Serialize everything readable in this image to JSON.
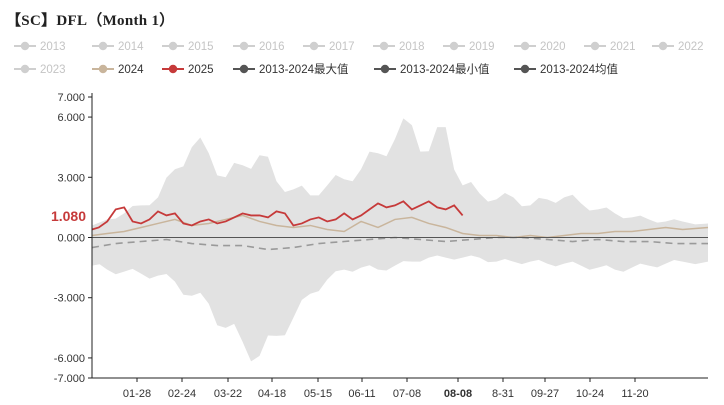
{
  "title": "【SC】DFL（Month 1）",
  "colors": {
    "inactive": "#cfcfcf",
    "inactive_text": "#c4c4c4",
    "series_2024": "#c9b59c",
    "series_2025": "#c63a3a",
    "band": "#e2e2e2",
    "min_line": "#555555",
    "mean_line": "#9a9a9a",
    "axis": "#222222",
    "active_text": "#333333",
    "highlight_text": "#c63a3a"
  },
  "legend": [
    {
      "label": "2013",
      "active": false
    },
    {
      "label": "2014",
      "active": false
    },
    {
      "label": "2015",
      "active": false
    },
    {
      "label": "2016",
      "active": false
    },
    {
      "label": "2017",
      "active": false
    },
    {
      "label": "2018",
      "active": false
    },
    {
      "label": "2019",
      "active": false
    },
    {
      "label": "2020",
      "active": false
    },
    {
      "label": "2021",
      "active": false
    },
    {
      "label": "2022",
      "active": false
    },
    {
      "label": "2023",
      "active": false
    },
    {
      "label": "2024",
      "active": true,
      "color": "#c9b59c"
    },
    {
      "label": "2025",
      "active": true,
      "color": "#c63a3a"
    },
    {
      "label": "2013-2024最大值",
      "active": true,
      "color": "#555555"
    },
    {
      "label": "2013-2024最小值",
      "active": true,
      "color": "#555555"
    },
    {
      "label": "2013-2024均值",
      "active": true,
      "color": "#555555"
    }
  ],
  "chart_data": {
    "type": "line",
    "title": "【SC】DFL（Month 1）",
    "y_ticks": [
      "7.000",
      "6.000",
      "3.000",
      "0.000",
      "-3.000",
      "-6.000",
      "-7.000"
    ],
    "ylim": [
      -7,
      7
    ],
    "x_tick_labels": [
      "01-28",
      "02-24",
      "03-22",
      "04-18",
      "05-15",
      "06-11",
      "07-08",
      "08-08",
      "8-31",
      "09-27",
      "10-24",
      "11-20"
    ],
    "highlight_x_label": "08-08",
    "highlight_y_label": "1.080",
    "x_domain_days": [
      1,
      365
    ],
    "band_max": {
      "x": [
        1,
        10,
        20,
        30,
        40,
        50,
        60,
        70,
        80,
        90,
        100,
        110,
        120,
        130,
        140,
        150,
        160,
        170,
        180,
        190,
        200,
        210,
        220,
        230,
        240,
        250,
        260,
        270,
        280,
        290,
        300,
        310,
        320,
        330,
        340,
        350,
        365
      ],
      "y": [
        0.6,
        0.9,
        1.2,
        1.6,
        2.0,
        3.4,
        4.5,
        4.2,
        3.0,
        3.6,
        4.1,
        2.8,
        2.4,
        2.1,
        2.6,
        2.9,
        3.4,
        4.2,
        4.9,
        5.6,
        4.3,
        5.5,
        2.6,
        2.2,
        1.9,
        2.0,
        1.6,
        1.9,
        2.0,
        1.7,
        1.4,
        1.2,
        1.0,
        0.9,
        0.8,
        0.8,
        0.7
      ]
    },
    "band_min": {
      "x": [
        1,
        10,
        20,
        30,
        40,
        50,
        60,
        70,
        80,
        90,
        100,
        110,
        120,
        130,
        140,
        150,
        160,
        170,
        180,
        190,
        200,
        210,
        220,
        230,
        240,
        250,
        260,
        270,
        280,
        290,
        300,
        310,
        320,
        330,
        340,
        350,
        365
      ],
      "y": [
        -1.4,
        -1.6,
        -1.7,
        -1.8,
        -1.9,
        -2.2,
        -2.9,
        -3.3,
        -4.5,
        -5.2,
        -5.9,
        -4.9,
        -4.0,
        -2.8,
        -2.1,
        -1.6,
        -1.5,
        -1.6,
        -1.4,
        -1.2,
        -1.0,
        -1.0,
        -1.0,
        -1.0,
        -1.2,
        -1.2,
        -1.2,
        -1.3,
        -1.3,
        -1.4,
        -1.5,
        -1.6,
        -1.5,
        -1.4,
        -1.3,
        -1.2,
        -1.2
      ]
    },
    "series": [
      {
        "name": "2024",
        "color": "#c9b59c",
        "x": [
          1,
          10,
          20,
          30,
          40,
          50,
          60,
          70,
          80,
          90,
          100,
          110,
          120,
          130,
          140,
          150,
          160,
          170,
          180,
          190,
          200,
          210,
          220,
          230,
          240,
          250,
          260,
          270,
          280,
          290,
          300,
          310,
          320,
          330,
          340,
          350,
          365
        ],
        "y": [
          0.1,
          0.2,
          0.3,
          0.5,
          0.7,
          0.9,
          0.6,
          0.7,
          0.9,
          1.1,
          0.8,
          0.6,
          0.5,
          0.6,
          0.4,
          0.3,
          0.8,
          0.5,
          0.9,
          1.0,
          0.7,
          0.5,
          0.2,
          0.1,
          0.1,
          0.0,
          0.1,
          0.0,
          0.1,
          0.2,
          0.2,
          0.3,
          0.3,
          0.4,
          0.5,
          0.4,
          0.5
        ]
      },
      {
        "name": "2025",
        "color": "#c63a3a",
        "x": [
          1,
          5,
          10,
          15,
          20,
          25,
          30,
          35,
          40,
          45,
          50,
          55,
          60,
          65,
          70,
          75,
          80,
          85,
          90,
          95,
          100,
          105,
          110,
          115,
          120,
          125,
          130,
          135,
          140,
          145,
          150,
          155,
          160,
          165,
          170,
          175,
          180,
          185,
          190,
          195,
          200,
          205,
          210,
          215,
          220
        ],
        "y": [
          0.4,
          0.5,
          0.8,
          1.4,
          1.5,
          0.8,
          0.7,
          0.9,
          1.3,
          1.1,
          1.2,
          0.7,
          0.6,
          0.8,
          0.9,
          0.7,
          0.8,
          1.0,
          1.2,
          1.1,
          1.1,
          1.0,
          1.3,
          1.2,
          0.6,
          0.7,
          0.9,
          1.0,
          0.8,
          0.9,
          1.2,
          0.9,
          1.1,
          1.4,
          1.7,
          1.5,
          1.6,
          1.8,
          1.4,
          1.6,
          1.8,
          1.5,
          1.4,
          1.6,
          1.1
        ]
      },
      {
        "name": "2013-2024均值",
        "color": "#9a9a9a",
        "dashed": true,
        "x": [
          1,
          15,
          30,
          45,
          60,
          75,
          90,
          105,
          120,
          135,
          150,
          165,
          180,
          195,
          210,
          225,
          240,
          255,
          270,
          285,
          300,
          315,
          330,
          345,
          365
        ],
        "y": [
          -0.5,
          -0.3,
          -0.2,
          -0.1,
          -0.3,
          -0.4,
          -0.4,
          -0.6,
          -0.5,
          -0.3,
          -0.2,
          -0.1,
          0.0,
          -0.1,
          -0.2,
          -0.1,
          0.0,
          0.0,
          -0.1,
          -0.2,
          -0.1,
          -0.2,
          -0.2,
          -0.3,
          -0.3
        ]
      }
    ]
  }
}
